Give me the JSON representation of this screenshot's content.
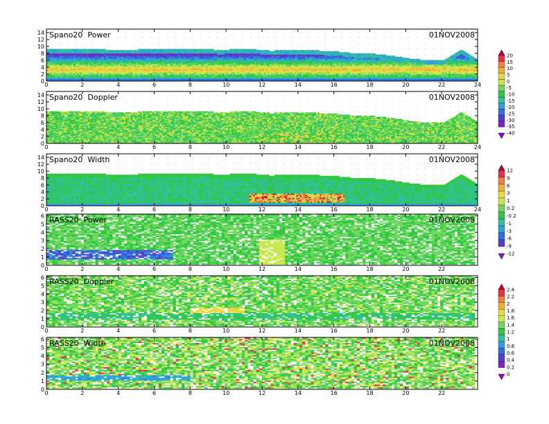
{
  "chart_data": [
    {
      "type": "heatmap",
      "title": "Spano20  Power",
      "date": "01NOV2008",
      "xlim": [
        0,
        24
      ],
      "ylim": [
        0,
        15
      ],
      "xticks": [
        0,
        2,
        4,
        6,
        8,
        10,
        12,
        14,
        16,
        18,
        20,
        22,
        24
      ],
      "yticks": [
        0,
        2,
        4,
        6,
        8,
        10,
        12,
        14
      ],
      "xtick_labels": [
        "0",
        "2",
        "4",
        "6",
        "8",
        "10",
        "12",
        "14",
        "16",
        "18",
        "20",
        "22",
        "24"
      ],
      "ytick_labels": [
        "0",
        "2",
        "4",
        "6",
        "8",
        "10",
        "12",
        "14"
      ],
      "field": "power",
      "data_top": [
        9.0,
        9.2,
        9.0,
        9.0,
        8.9,
        8.9,
        9.1,
        9.0,
        9.0,
        9.2,
        8.8,
        9.1,
        9.0,
        8.6,
        8.8,
        8.8,
        8.6,
        8.3,
        7.8,
        7.7,
        7.2,
        6.4,
        5.9,
        6.0,
        8.9,
        6.0
      ],
      "colorbar_group": 0
    },
    {
      "type": "heatmap",
      "title": "Spano20  Doppler",
      "date": "01NOV2008",
      "xlim": [
        0,
        24
      ],
      "ylim": [
        0,
        15
      ],
      "xticks": [
        0,
        2,
        4,
        6,
        8,
        10,
        12,
        14,
        16,
        18,
        20,
        22,
        24
      ],
      "yticks": [
        0,
        2,
        4,
        6,
        8,
        10,
        12,
        14
      ],
      "xtick_labels": [
        "0",
        "2",
        "4",
        "6",
        "8",
        "10",
        "12",
        "14",
        "16",
        "18",
        "20",
        "22",
        "24"
      ],
      "ytick_labels": [
        "0",
        "2",
        "4",
        "6",
        "8",
        "10",
        "12",
        "14"
      ],
      "field": "doppler",
      "data_top": [
        9.0,
        9.2,
        9.0,
        9.0,
        8.9,
        8.9,
        9.1,
        9.0,
        9.0,
        9.2,
        8.8,
        9.1,
        9.0,
        8.6,
        8.8,
        8.8,
        8.6,
        8.3,
        7.8,
        7.7,
        7.2,
        6.4,
        5.9,
        6.0,
        8.9,
        6.0
      ],
      "colorbar_group": 0
    },
    {
      "type": "heatmap",
      "title": "Spano20  Width",
      "date": "01NOV2008",
      "xlim": [
        0,
        24
      ],
      "ylim": [
        0,
        15
      ],
      "xticks": [
        0,
        2,
        4,
        6,
        8,
        10,
        12,
        14,
        16,
        18,
        20,
        22,
        24
      ],
      "yticks": [
        0,
        2,
        4,
        6,
        8,
        10,
        12,
        14
      ],
      "xtick_labels": [
        "0",
        "2",
        "4",
        "6",
        "8",
        "10",
        "12",
        "14",
        "16",
        "18",
        "20",
        "22",
        "24"
      ],
      "ytick_labels": [
        "0",
        "2",
        "4",
        "6",
        "8",
        "10",
        "12",
        "14"
      ],
      "field": "width",
      "data_top": [
        9.0,
        9.2,
        9.0,
        9.0,
        8.9,
        8.9,
        9.1,
        9.0,
        9.0,
        9.2,
        8.8,
        9.1,
        9.0,
        8.6,
        8.8,
        8.8,
        8.6,
        8.3,
        7.8,
        7.7,
        7.2,
        6.4,
        5.9,
        6.0,
        8.9,
        6.0
      ],
      "colorbar_group": 1
    },
    {
      "type": "heatmap",
      "title": "RASS20  Power",
      "date": "01NOV2008",
      "xlim": [
        0,
        24
      ],
      "ylim": [
        0,
        6.2
      ],
      "xticks": [
        0,
        2,
        4,
        6,
        8,
        10,
        12,
        14,
        16,
        18,
        20,
        22
      ],
      "yticks": [
        0,
        1,
        2,
        3,
        4,
        5,
        6
      ],
      "xtick_labels": [
        "0",
        "2",
        "4",
        "6",
        "8",
        "10",
        "12",
        "14",
        "16",
        "18",
        "20",
        "22"
      ],
      "ytick_labels": [
        "0",
        "1",
        "2",
        "3",
        "4",
        "5",
        "6"
      ],
      "field": "rass_power",
      "colorbar_group": 1
    },
    {
      "type": "heatmap",
      "title": "RASS20  Doppler",
      "date": "01NOV2008",
      "xlim": [
        0,
        24
      ],
      "ylim": [
        0,
        6.2
      ],
      "xticks": [
        0,
        2,
        4,
        6,
        8,
        10,
        12,
        14,
        16,
        18,
        20,
        22
      ],
      "yticks": [
        0,
        1,
        2,
        3,
        4,
        5,
        6
      ],
      "xtick_labels": [
        "0",
        "2",
        "4",
        "6",
        "8",
        "10",
        "12",
        "14",
        "16",
        "18",
        "20",
        "22"
      ],
      "ytick_labels": [
        "0",
        "1",
        "2",
        "3",
        "4",
        "5",
        "6"
      ],
      "field": "rass_doppler",
      "colorbar_group": 2
    },
    {
      "type": "heatmap",
      "title": "RASS20  Width",
      "date": "01NOV2008",
      "xlim": [
        0,
        24
      ],
      "ylim": [
        0,
        6.2
      ],
      "xticks": [
        0,
        2,
        4,
        6,
        8,
        10,
        12,
        14,
        16,
        18,
        20,
        22
      ],
      "yticks": [
        0,
        1,
        2,
        3,
        4,
        5,
        6
      ],
      "xtick_labels": [
        "0",
        "2",
        "4",
        "6",
        "8",
        "10",
        "12",
        "14",
        "16",
        "18",
        "20",
        "22"
      ],
      "ytick_labels": [
        "0",
        "1",
        "2",
        "3",
        "4",
        "5",
        "6"
      ],
      "field": "rass_width",
      "colorbar_group": 2
    }
  ],
  "colorbars": [
    {
      "labels": [
        "20",
        "15",
        "10",
        "5",
        "0",
        "-5",
        "-10",
        "-15",
        "-20",
        "-25",
        "-30",
        "-35",
        "-40"
      ],
      "colors": [
        "#c8003c",
        "#e8304a",
        "#f08040",
        "#f0b030",
        "#e8d840",
        "#c8e850",
        "#70d860",
        "#30c840",
        "#30c0a0",
        "#30a0d8",
        "#3070e0",
        "#5040d0",
        "#8020c0",
        "#a000d0"
      ]
    },
    {
      "labels": [
        "12",
        "9",
        "6",
        "3",
        "1",
        "0.2",
        "-0.2",
        "-1",
        "-3",
        "-6",
        "-9",
        "-12"
      ],
      "colors": [
        "#c8003c",
        "#e8304a",
        "#f08040",
        "#f0b030",
        "#e8d840",
        "#c8e850",
        "#70d860",
        "#30c840",
        "#30c0a0",
        "#30a0d8",
        "#3070e0",
        "#5040d0",
        "#8020c0"
      ]
    },
    {
      "labels": [
        "2.4",
        "2.2",
        "2",
        "1.8",
        "1.6",
        "1.4",
        "1.2",
        "1",
        "0.8",
        "0.6",
        "0.4",
        "0.2",
        "0"
      ],
      "colors": [
        "#c8003c",
        "#e8304a",
        "#f08040",
        "#f0b030",
        "#e8d840",
        "#c8e850",
        "#70d860",
        "#30c840",
        "#30c0a0",
        "#30a0d8",
        "#3070e0",
        "#5040d0",
        "#8020c0",
        "#a000d0"
      ]
    }
  ]
}
